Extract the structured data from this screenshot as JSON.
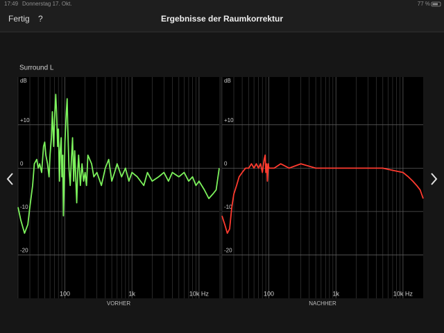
{
  "status_bar": {
    "time": "17:49",
    "date": "Donnerstag 17. Okt.",
    "battery": "77 %"
  },
  "nav": {
    "done": "Fertig",
    "help": "?",
    "title": "Ergebnisse der Raumkorrektur"
  },
  "section_title": "Surround L",
  "chart_data": [
    {
      "type": "line",
      "caption": "VORHER",
      "ylabel": "dB",
      "color": "#7cf25c",
      "log_x": true,
      "xlim": [
        20,
        20000
      ],
      "ylim": [
        -30,
        21
      ],
      "xticks": [
        100,
        {
          "value": 1000,
          "label": "1k"
        },
        {
          "value": 10000,
          "label": "10k Hz"
        }
      ],
      "xminor": [
        20,
        30,
        40,
        50,
        60,
        70,
        80,
        90,
        200,
        300,
        400,
        500,
        600,
        700,
        800,
        900,
        2000,
        3000,
        4000,
        5000,
        6000,
        7000,
        8000,
        9000
      ],
      "yticks": [
        {
          "value": 10,
          "label": "+10"
        },
        0,
        -10,
        -20
      ],
      "x": [
        20,
        22,
        25,
        28,
        30,
        33,
        35,
        38,
        40,
        42,
        45,
        48,
        50,
        52,
        55,
        58,
        60,
        63,
        65,
        68,
        70,
        73,
        75,
        78,
        80,
        83,
        85,
        88,
        90,
        93,
        95,
        98,
        100,
        105,
        108,
        110,
        115,
        120,
        125,
        130,
        135,
        140,
        150,
        155,
        160,
        170,
        180,
        190,
        200,
        210,
        220,
        250,
        270,
        300,
        350,
        400,
        450,
        500,
        550,
        600,
        700,
        800,
        900,
        1000,
        1200,
        1500,
        1700,
        2000,
        2500,
        3000,
        3500,
        4000,
        5000,
        6000,
        7000,
        8000,
        9000,
        10000,
        12000,
        14000,
        16000,
        18000,
        20000
      ],
      "values": [
        -9,
        -12,
        -15,
        -13,
        -9,
        -4,
        1,
        2,
        0,
        1,
        -1,
        5,
        6,
        3,
        1,
        -2,
        3,
        7,
        13,
        5,
        11,
        17,
        13,
        5,
        9,
        -3,
        4,
        7,
        -2,
        3,
        -11,
        -2,
        6,
        13,
        16,
        10,
        0,
        -4,
        2,
        7,
        -3,
        4,
        -8,
        -1,
        3,
        -4,
        1,
        -3,
        -1,
        -4,
        3,
        1,
        -2,
        -1,
        -4,
        0,
        2,
        -3,
        -1,
        1,
        -2,
        0,
        -3,
        -1,
        -2,
        -4,
        -1,
        -3,
        -2,
        -1,
        -3,
        -1,
        -2,
        -1,
        -3,
        -2,
        -4,
        -3,
        -5,
        -7,
        -6,
        -5,
        0
      ]
    },
    {
      "type": "line",
      "caption": "NACHHER",
      "ylabel": "dB",
      "color": "#ff3b2f",
      "log_x": true,
      "xlim": [
        20,
        20000
      ],
      "ylim": [
        -30,
        21
      ],
      "xticks": [
        100,
        {
          "value": 1000,
          "label": "1k"
        },
        {
          "value": 10000,
          "label": "10k Hz"
        }
      ],
      "xminor": [
        20,
        30,
        40,
        50,
        60,
        70,
        80,
        90,
        200,
        300,
        400,
        500,
        600,
        700,
        800,
        900,
        2000,
        3000,
        4000,
        5000,
        6000,
        7000,
        8000,
        9000
      ],
      "yticks": [
        {
          "value": 10,
          "label": "+10"
        },
        0,
        -10,
        -20
      ],
      "x": [
        20,
        22,
        24,
        26,
        28,
        30,
        33,
        36,
        40,
        45,
        50,
        55,
        60,
        65,
        70,
        75,
        80,
        85,
        88,
        90,
        93,
        95,
        98,
        100,
        120,
        150,
        200,
        300,
        500,
        1000,
        2000,
        3000,
        5000,
        7000,
        10000,
        12000,
        14000,
        16000,
        18000,
        20000
      ],
      "values": [
        -11,
        -13,
        -15,
        -14,
        -9,
        -6,
        -4,
        -2,
        -1,
        0,
        0,
        1,
        0,
        1,
        0,
        1,
        -1,
        2,
        3,
        -1,
        1,
        -3,
        1,
        0,
        0,
        1,
        0,
        1,
        0,
        0,
        0,
        0,
        0,
        -0.5,
        -1,
        -2,
        -3,
        -4,
        -5,
        -7
      ]
    }
  ]
}
